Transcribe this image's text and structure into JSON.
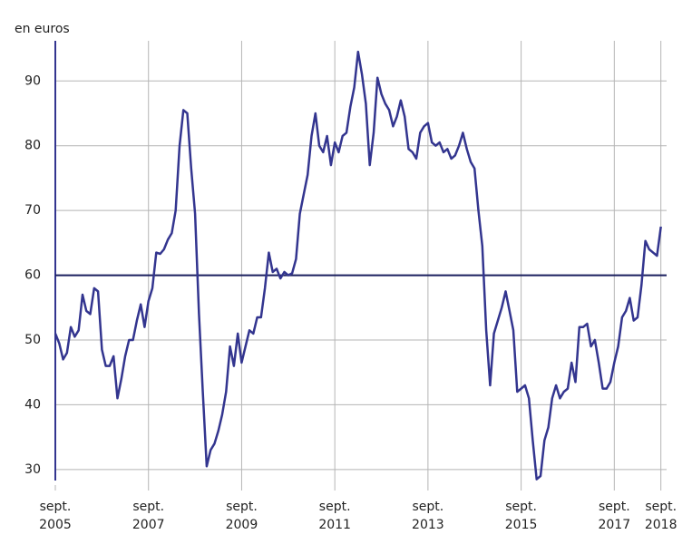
{
  "chart_data": {
    "type": "line",
    "ylabel": "en euros",
    "x": [
      "2005-09",
      "2005-10",
      "2005-11",
      "2005-12",
      "2006-01",
      "2006-02",
      "2006-03",
      "2006-04",
      "2006-05",
      "2006-06",
      "2006-07",
      "2006-08",
      "2006-09",
      "2006-10",
      "2006-11",
      "2006-12",
      "2007-01",
      "2007-02",
      "2007-03",
      "2007-04",
      "2007-05",
      "2007-06",
      "2007-07",
      "2007-08",
      "2007-09",
      "2007-10",
      "2007-11",
      "2007-12",
      "2008-01",
      "2008-02",
      "2008-03",
      "2008-04",
      "2008-05",
      "2008-06",
      "2008-07",
      "2008-08",
      "2008-09",
      "2008-10",
      "2008-11",
      "2008-12",
      "2009-01",
      "2009-02",
      "2009-03",
      "2009-04",
      "2009-05",
      "2009-06",
      "2009-07",
      "2009-08",
      "2009-09",
      "2009-10",
      "2009-11",
      "2009-12",
      "2010-01",
      "2010-02",
      "2010-03",
      "2010-04",
      "2010-05",
      "2010-06",
      "2010-07",
      "2010-08",
      "2010-09",
      "2010-10",
      "2010-11",
      "2010-12",
      "2011-01",
      "2011-02",
      "2011-03",
      "2011-04",
      "2011-05",
      "2011-06",
      "2011-07",
      "2011-08",
      "2011-09",
      "2011-10",
      "2011-11",
      "2011-12",
      "2012-01",
      "2012-02",
      "2012-03",
      "2012-04",
      "2012-05",
      "2012-06",
      "2012-07",
      "2012-08",
      "2012-09",
      "2012-10",
      "2012-11",
      "2012-12",
      "2013-01",
      "2013-02",
      "2013-03",
      "2013-04",
      "2013-05",
      "2013-06",
      "2013-07",
      "2013-08",
      "2013-09",
      "2013-10",
      "2013-11",
      "2013-12",
      "2014-01",
      "2014-02",
      "2014-03",
      "2014-04",
      "2014-05",
      "2014-06",
      "2014-07",
      "2014-08",
      "2014-09",
      "2014-10",
      "2014-11",
      "2014-12",
      "2015-01",
      "2015-02",
      "2015-03",
      "2015-04",
      "2015-05",
      "2015-06",
      "2015-07",
      "2015-08",
      "2015-09",
      "2015-10",
      "2015-11",
      "2015-12",
      "2016-01",
      "2016-02",
      "2016-03",
      "2016-04",
      "2016-05",
      "2016-06",
      "2016-07",
      "2016-08",
      "2016-09",
      "2016-10",
      "2016-11",
      "2016-12",
      "2017-01",
      "2017-02",
      "2017-03",
      "2017-04",
      "2017-05",
      "2017-06",
      "2017-07",
      "2017-08",
      "2017-09",
      "2017-10",
      "2017-11",
      "2017-12",
      "2018-01",
      "2018-02",
      "2018-03",
      "2018-04",
      "2018-05",
      "2018-06",
      "2018-07",
      "2018-08",
      "2018-09"
    ],
    "series": [
      {
        "color": "#33358f",
        "values": [
          51,
          49.5,
          47,
          48,
          52,
          50.5,
          51.5,
          57,
          54.5,
          54,
          58,
          57.5,
          48.5,
          46,
          46,
          47.5,
          41,
          44,
          47.5,
          50,
          50,
          53,
          55.5,
          52,
          56,
          58,
          63.5,
          63.3,
          64,
          65.5,
          66.5,
          70,
          80,
          85.5,
          85,
          76.5,
          69.5,
          54,
          42,
          30.5,
          33,
          34,
          36,
          38.5,
          42,
          49,
          46,
          51,
          46.5,
          49,
          51.5,
          51,
          53.5,
          53.5,
          58,
          63.5,
          60.5,
          61,
          59.5,
          60.5,
          60,
          60.3,
          62.5,
          69.5,
          72.5,
          75.5,
          81.5,
          85,
          80,
          79,
          81.5,
          77,
          80.5,
          79,
          81.5,
          82,
          86,
          89,
          94.5,
          91,
          86.5,
          77,
          82,
          90.5,
          88,
          86.5,
          85.5,
          83,
          84.5,
          87,
          84.5,
          79.5,
          79,
          78,
          82,
          83,
          83.5,
          80.5,
          80,
          80.5,
          79,
          79.5,
          78,
          78.5,
          80,
          82,
          79.5,
          77.5,
          76.5,
          70,
          64.5,
          51.5,
          43,
          51,
          53,
          55,
          57.5,
          54.5,
          51.5,
          42,
          42.5,
          43,
          41,
          34.5,
          28.5,
          29,
          34.5,
          36.5,
          41,
          43,
          41,
          42,
          42.5,
          46.5,
          43.5,
          52,
          52,
          52.5,
          49,
          50,
          46.5,
          42.5,
          42.5,
          43.5,
          46.5,
          49,
          53.5,
          54.5,
          56.5,
          53,
          53.5,
          58.5,
          65.3,
          64,
          63.5,
          63,
          67.5
        ]
      }
    ],
    "ylim": [
      27.6,
      96.2
    ],
    "yticks": [
      30,
      40,
      50,
      60,
      70,
      80,
      90
    ],
    "xticks": [
      {
        "value": "2005-09",
        "label": [
          "sept.",
          "2005"
        ]
      },
      {
        "value": "2007-09",
        "label": [
          "sept.",
          "2007"
        ]
      },
      {
        "value": "2009-09",
        "label": [
          "sept.",
          "2009"
        ]
      },
      {
        "value": "2011-09",
        "label": [
          "sept.",
          "2011"
        ]
      },
      {
        "value": "2013-09",
        "label": [
          "sept.",
          "2013"
        ]
      },
      {
        "value": "2015-09",
        "label": [
          "sept.",
          "2015"
        ]
      },
      {
        "value": "2017-09",
        "label": [
          "sept.",
          "2017"
        ]
      },
      {
        "value": "2018-09",
        "label": [
          "sept.",
          "2018"
        ]
      }
    ],
    "reference_line": 60,
    "reference_color": "#1a1f5e",
    "grid": true
  }
}
